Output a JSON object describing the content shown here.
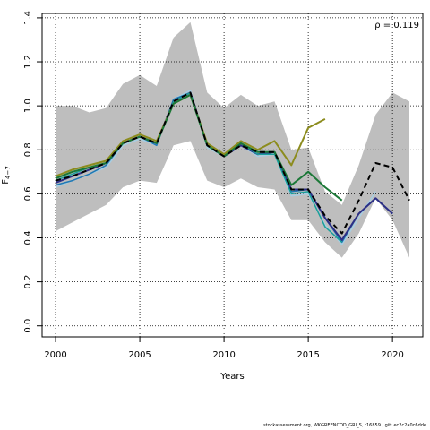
{
  "chart_data": {
    "type": "line",
    "title": "",
    "xlabel": "Years",
    "ylabel": "F4-7",
    "ylabel_main": "F",
    "ylabel_sub": "4−7",
    "xlim": [
      1999.2,
      2021.8
    ],
    "ylim": [
      -0.05,
      1.42
    ],
    "x_ticks": [
      2000,
      2005,
      2010,
      2015,
      2020
    ],
    "y_ticks": [
      0.0,
      0.2,
      0.4,
      0.6,
      0.8,
      1.0,
      1.2,
      1.4
    ],
    "y_tick_labels": [
      "0.0",
      "0.2",
      "0.4",
      "0.6",
      "0.8",
      "1.0",
      "1.2",
      "1.4"
    ],
    "grid": true,
    "annotation": "ρ = 0.119",
    "colors": {
      "band": "#bebebe",
      "lightblue": "#a6cee3",
      "blue": "#1f78b4",
      "olive": "#8c8c1e",
      "darkgreen": "#1b7837",
      "navy": "#2c2f86",
      "teal": "#1a9f9a",
      "black": "#000000"
    },
    "band": {
      "x": [
        2000,
        2001,
        2002,
        2003,
        2004,
        2005,
        2006,
        2007,
        2008,
        2009,
        2010,
        2011,
        2012,
        2013,
        2014,
        2015,
        2016,
        2017,
        2018,
        2019,
        2020,
        2021
      ],
      "lower": [
        0.43,
        0.47,
        0.51,
        0.55,
        0.63,
        0.66,
        0.65,
        0.82,
        0.84,
        0.66,
        0.63,
        0.67,
        0.63,
        0.62,
        0.48,
        0.48,
        0.38,
        0.31,
        0.42,
        0.58,
        0.48,
        0.31
      ],
      "upper": [
        1.0,
        1.0,
        0.97,
        0.99,
        1.1,
        1.14,
        1.09,
        1.31,
        1.38,
        1.06,
        0.99,
        1.05,
        1.0,
        1.02,
        0.8,
        0.81,
        0.61,
        0.55,
        0.73,
        0.96,
        1.06,
        1.02
      ]
    },
    "series": [
      {
        "color_key": "lightblue",
        "width": 1.5,
        "dash": "",
        "x": [
          2000,
          2001,
          2002,
          2003,
          2004,
          2005,
          2006,
          2007,
          2008,
          2009,
          2010,
          2011,
          2012,
          2013,
          2014,
          2015,
          2016,
          2017,
          2018,
          2019
        ],
        "y": [
          0.63,
          0.66,
          0.69,
          0.72,
          0.82,
          0.85,
          0.82,
          1.03,
          1.07,
          0.81,
          0.77,
          0.82,
          0.77,
          0.78,
          0.59,
          0.6,
          0.46,
          0.37,
          0.49,
          0.61
        ]
      },
      {
        "color_key": "blue",
        "width": 1.5,
        "dash": "",
        "x": [
          2000,
          2001,
          2002,
          2003,
          2004,
          2005,
          2006,
          2007,
          2008,
          2009,
          2010,
          2011,
          2012,
          2013,
          2014,
          2015,
          2016,
          2017,
          2018,
          2019,
          2020
        ],
        "y": [
          0.64,
          0.66,
          0.69,
          0.73,
          0.83,
          0.86,
          0.82,
          1.03,
          1.06,
          0.82,
          0.77,
          0.82,
          0.78,
          0.79,
          0.61,
          0.62,
          0.49,
          0.38,
          0.51,
          0.58,
          0.51
        ]
      },
      {
        "color_key": "navy",
        "width": 2,
        "dash": "",
        "x": [
          2000,
          2001,
          2002,
          2003,
          2004,
          2005,
          2006,
          2007,
          2008,
          2009,
          2010,
          2011,
          2012,
          2013,
          2014,
          2015,
          2016,
          2017,
          2018,
          2019,
          2020
        ],
        "y": [
          0.65,
          0.68,
          0.71,
          0.74,
          0.83,
          0.86,
          0.83,
          1.02,
          1.06,
          0.82,
          0.77,
          0.82,
          0.78,
          0.79,
          0.62,
          0.62,
          0.49,
          0.39,
          0.51,
          0.58,
          0.51
        ]
      },
      {
        "color_key": "teal",
        "width": 1.5,
        "dash": "",
        "x": [
          2000,
          2001,
          2002,
          2003,
          2004,
          2005,
          2006,
          2007,
          2008,
          2009,
          2010,
          2011,
          2012,
          2013,
          2014,
          2015,
          2016,
          2017
        ],
        "y": [
          0.66,
          0.69,
          0.72,
          0.74,
          0.83,
          0.86,
          0.83,
          1.02,
          1.06,
          0.82,
          0.77,
          0.83,
          0.78,
          0.78,
          0.6,
          0.61,
          0.45,
          0.38
        ]
      },
      {
        "color_key": "olive",
        "width": 2,
        "dash": "",
        "x": [
          2000,
          2001,
          2002,
          2003,
          2004,
          2005,
          2006,
          2007,
          2008,
          2009,
          2010,
          2011,
          2012,
          2013,
          2014,
          2015,
          2016
        ],
        "y": [
          0.68,
          0.71,
          0.73,
          0.75,
          0.84,
          0.87,
          0.84,
          1.01,
          1.05,
          0.83,
          0.78,
          0.84,
          0.8,
          0.84,
          0.73,
          0.9,
          0.94
        ]
      },
      {
        "color_key": "darkgreen",
        "width": 2,
        "dash": "",
        "x": [
          2000,
          2001,
          2002,
          2003,
          2004,
          2005,
          2006,
          2007,
          2008,
          2009,
          2010,
          2011,
          2012,
          2013,
          2014,
          2015,
          2016,
          2017
        ],
        "y": [
          0.67,
          0.7,
          0.72,
          0.74,
          0.83,
          0.86,
          0.83,
          1.01,
          1.05,
          0.82,
          0.77,
          0.83,
          0.79,
          0.79,
          0.64,
          0.7,
          0.63,
          0.57
        ]
      },
      {
        "color_key": "black",
        "width": 2,
        "dash": "6,4",
        "x": [
          2000,
          2001,
          2002,
          2003,
          2004,
          2005,
          2006,
          2007,
          2008,
          2009,
          2010,
          2011,
          2012,
          2013,
          2014,
          2015,
          2016,
          2017,
          2018,
          2019,
          2020,
          2021
        ],
        "y": [
          0.66,
          0.68,
          0.71,
          0.74,
          0.83,
          0.86,
          0.83,
          1.02,
          1.06,
          0.82,
          0.77,
          0.82,
          0.79,
          0.79,
          0.62,
          0.62,
          0.5,
          0.42,
          0.57,
          0.74,
          0.72,
          0.57
        ]
      }
    ]
  },
  "footer": "stockassessment.org, WKGREENCOD_GRI_S, r16859 , git: ec2c2a0c6dde"
}
